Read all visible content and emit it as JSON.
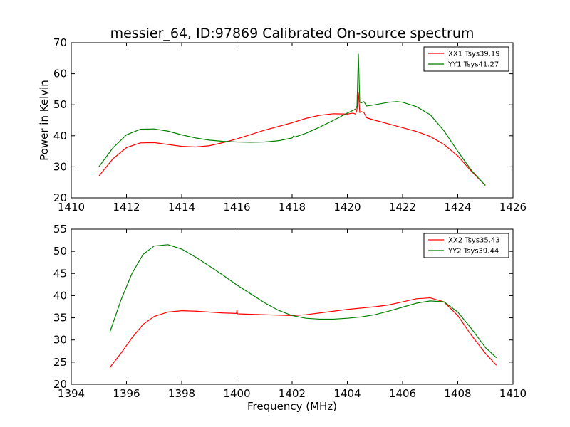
{
  "figure": {
    "title": "messier_64, ID:97869 Calibrated On-source spectrum"
  },
  "chart_data": [
    {
      "type": "line",
      "title": "messier_64, ID:97869 Calibrated On-source spectrum",
      "xlabel": "",
      "ylabel": "Power in Kelvin",
      "xlim": [
        1410,
        1426
      ],
      "ylim": [
        20,
        70
      ],
      "xticks": [
        "1410",
        "1412",
        "1414",
        "1416",
        "1418",
        "1420",
        "1422",
        "1424",
        "1426"
      ],
      "yticks": [
        "20",
        "30",
        "40",
        "50",
        "60",
        "70"
      ],
      "grid": false,
      "legend": "top-right",
      "series": [
        {
          "name": "XX1 Tsys39.19",
          "color": "#ff0000",
          "x": [
            1411.0,
            1411.5,
            1412.0,
            1412.5,
            1413.0,
            1413.5,
            1414.0,
            1414.5,
            1415.0,
            1415.5,
            1416.0,
            1416.5,
            1417.0,
            1417.5,
            1418.0,
            1418.5,
            1419.0,
            1419.5,
            1420.0,
            1420.2,
            1420.3,
            1420.35,
            1420.4,
            1420.45,
            1420.5,
            1420.6,
            1420.7,
            1421.0,
            1421.5,
            1422.0,
            1422.5,
            1423.0,
            1423.5,
            1424.0,
            1424.5,
            1425.0
          ],
          "y": [
            27.0,
            32.5,
            36.2,
            37.7,
            37.8,
            37.2,
            36.6,
            36.4,
            36.8,
            37.8,
            39.0,
            40.4,
            41.8,
            43.0,
            44.2,
            45.6,
            46.6,
            47.1,
            47.0,
            47.3,
            47.0,
            48.5,
            54.0,
            47.5,
            47.8,
            47.5,
            45.8,
            45.0,
            43.8,
            42.6,
            41.4,
            39.8,
            37.2,
            33.5,
            28.5,
            24.0
          ]
        },
        {
          "name": "YY1 Tsys41.27",
          "color": "#008000",
          "x": [
            1411.0,
            1411.5,
            1412.0,
            1412.5,
            1413.0,
            1413.5,
            1414.0,
            1414.5,
            1415.0,
            1415.5,
            1416.0,
            1416.5,
            1417.0,
            1417.5,
            1418.0,
            1418.05,
            1418.1,
            1418.5,
            1419.0,
            1419.5,
            1420.0,
            1420.3,
            1420.35,
            1420.4,
            1420.45,
            1420.5,
            1420.6,
            1420.7,
            1421.0,
            1421.5,
            1421.8,
            1422.0,
            1422.5,
            1423.0,
            1423.5,
            1424.0,
            1424.5,
            1425.0
          ],
          "y": [
            30.0,
            36.0,
            40.3,
            42.1,
            42.2,
            41.5,
            40.3,
            39.3,
            38.6,
            38.2,
            38.0,
            37.9,
            38.0,
            38.4,
            39.3,
            39.9,
            39.6,
            40.8,
            42.8,
            45.0,
            47.3,
            48.6,
            49.5,
            66.3,
            50.8,
            50.6,
            51.0,
            49.6,
            50.0,
            50.8,
            51.0,
            50.8,
            49.4,
            46.8,
            41.6,
            35.0,
            28.8,
            24.0
          ]
        }
      ]
    },
    {
      "type": "line",
      "title": "",
      "xlabel": "Frequency (MHz)",
      "ylabel": "",
      "xlim": [
        1394,
        1410
      ],
      "ylim": [
        20,
        55
      ],
      "xticks": [
        "1394",
        "1396",
        "1398",
        "1400",
        "1402",
        "1404",
        "1406",
        "1408",
        "1410"
      ],
      "yticks": [
        "20",
        "25",
        "30",
        "35",
        "40",
        "45",
        "50",
        "55"
      ],
      "grid": false,
      "legend": "top-right",
      "series": [
        {
          "name": "XX2 Tsys35.43",
          "color": "#ff0000",
          "x": [
            1395.4,
            1395.8,
            1396.2,
            1396.6,
            1397.0,
            1397.5,
            1398.0,
            1398.5,
            1399.0,
            1399.5,
            1399.98,
            1400.0,
            1400.02,
            1400.5,
            1401.0,
            1401.5,
            1402.0,
            1402.5,
            1403.0,
            1403.5,
            1404.0,
            1404.5,
            1405.0,
            1405.5,
            1406.0,
            1406.5,
            1407.0,
            1407.5,
            1408.0,
            1408.5,
            1409.0,
            1409.4
          ],
          "y": [
            23.8,
            27.0,
            30.5,
            33.5,
            35.3,
            36.3,
            36.6,
            36.5,
            36.3,
            36.1,
            36.0,
            36.7,
            35.9,
            35.8,
            35.7,
            35.6,
            35.5,
            35.7,
            36.1,
            36.5,
            36.9,
            37.2,
            37.5,
            37.9,
            38.6,
            39.3,
            39.5,
            38.6,
            35.5,
            31.0,
            27.0,
            24.3
          ]
        },
        {
          "name": "YY2 Tsys39.44",
          "color": "#008000",
          "x": [
            1395.4,
            1395.8,
            1396.2,
            1396.6,
            1397.0,
            1397.5,
            1398.0,
            1398.5,
            1399.0,
            1399.5,
            1400.0,
            1400.5,
            1401.0,
            1401.5,
            1402.0,
            1402.5,
            1403.0,
            1403.5,
            1404.0,
            1404.5,
            1405.0,
            1405.5,
            1406.0,
            1406.5,
            1407.0,
            1407.5,
            1408.0,
            1408.5,
            1409.0,
            1409.4
          ],
          "y": [
            31.8,
            39.0,
            45.0,
            49.3,
            51.2,
            51.5,
            50.5,
            48.7,
            46.7,
            44.6,
            42.4,
            40.4,
            38.4,
            36.7,
            35.5,
            34.9,
            34.7,
            34.7,
            34.9,
            35.2,
            35.7,
            36.5,
            37.4,
            38.3,
            38.8,
            38.6,
            36.3,
            32.5,
            28.3,
            26.0
          ]
        }
      ]
    }
  ]
}
